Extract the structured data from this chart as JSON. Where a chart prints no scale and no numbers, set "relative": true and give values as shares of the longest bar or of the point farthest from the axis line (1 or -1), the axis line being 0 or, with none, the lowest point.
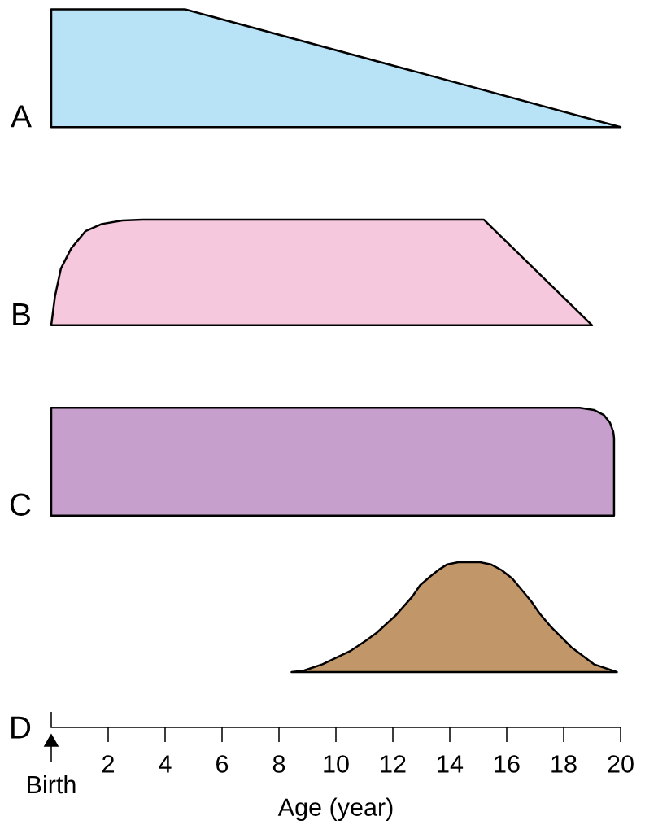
{
  "chart_data": {
    "type": "area",
    "relative": true,
    "xlim": [
      0,
      20
    ],
    "xticks": [
      2,
      4,
      6,
      8,
      10,
      12,
      14,
      16,
      18,
      20
    ],
    "xlabel": "Age (year)",
    "annotations": [
      "D",
      "Birth"
    ],
    "series": [
      {
        "name": "A",
        "color": "#b8e3f6",
        "x": [
          0,
          4.7,
          20
        ],
        "values": [
          1,
          1,
          0.836
        ]
      },
      {
        "name": "B",
        "color": "#f6c8dd",
        "x": [
          0,
          0.13,
          0.34,
          0.7,
          1.2,
          1.77,
          2.5,
          3.2,
          15.2,
          19.0
        ],
        "values": [
          0.56,
          0.6,
          0.639,
          0.667,
          0.691,
          0.701,
          0.706,
          0.707,
          0.707,
          0.56
        ]
      },
      {
        "name": "C",
        "color": "#c69fcc",
        "x": [
          0,
          18.56,
          19.06,
          19.41,
          19.63,
          19.74,
          19.77,
          19.77
        ],
        "values": [
          0.445,
          0.445,
          0.442,
          0.435,
          0.424,
          0.412,
          0.403,
          0.295
        ]
      },
      {
        "color": "#c19769",
        "x": [
          8.44,
          8.87,
          9.53,
          10.01,
          10.49,
          11.06,
          11.44,
          12.1,
          12.68,
          12.96,
          13.34,
          13.63,
          13.91,
          14.3,
          14.68,
          15.06,
          15.44,
          15.82,
          16.2,
          16.87,
          17.15,
          17.53,
          17.91,
          18.29,
          19.06,
          19.87
        ],
        "values": [
          0.077,
          0.079,
          0.088,
          0.097,
          0.106,
          0.121,
          0.132,
          0.156,
          0.182,
          0.198,
          0.211,
          0.22,
          0.227,
          0.23,
          0.23,
          0.23,
          0.227,
          0.219,
          0.207,
          0.175,
          0.159,
          0.141,
          0.126,
          0.111,
          0.088,
          0.077
        ]
      }
    ]
  }
}
